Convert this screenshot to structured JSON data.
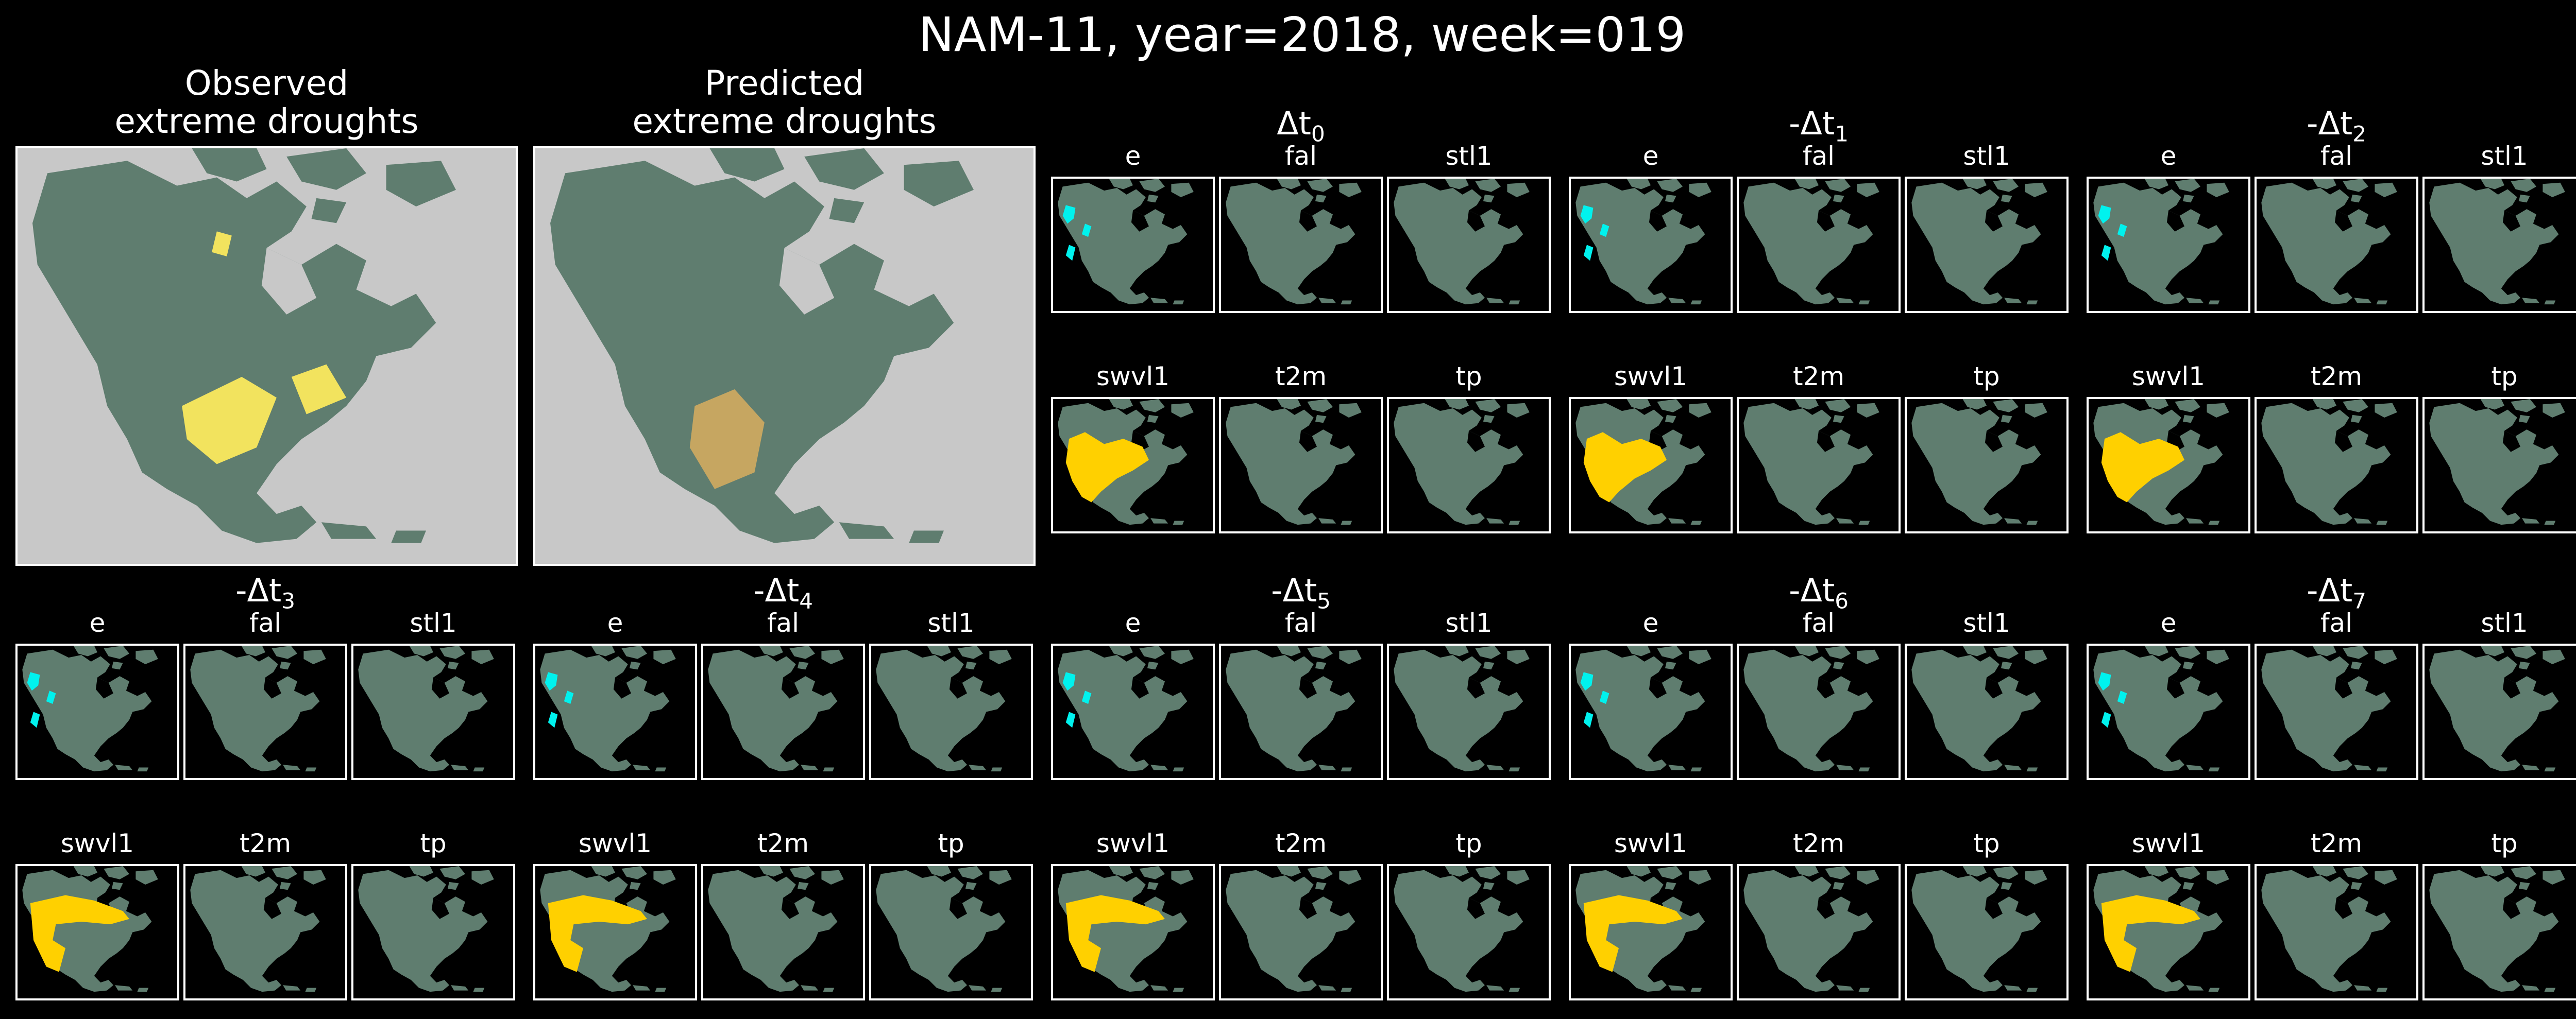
{
  "figure": {
    "title": "NAM-11,   year=2018, week=019",
    "observed_title": "Observed\nextreme droughts",
    "predicted_title": "Predicted\nextreme droughts"
  },
  "colors": {
    "background": "#000000",
    "land": "#5f7d6f",
    "ocean_big": "#c8c8c8",
    "ocean_small": "#000000",
    "drought_observed": "#f2e35e",
    "drought_predicted": "#e8b45c",
    "e_highlight": "#00f2ee",
    "swvl1_highlight": "#ffd000"
  },
  "variables_top": [
    "e",
    "fal",
    "stl1"
  ],
  "variables_bottom": [
    "swvl1",
    "t2m",
    "tp"
  ],
  "groups": [
    {
      "prefix": "Δt",
      "sub": "0"
    },
    {
      "prefix": "-Δt",
      "sub": "1"
    },
    {
      "prefix": "-Δt",
      "sub": "2"
    },
    {
      "prefix": "-Δt",
      "sub": "3"
    },
    {
      "prefix": "-Δt",
      "sub": "4"
    },
    {
      "prefix": "-Δt",
      "sub": "5"
    },
    {
      "prefix": "-Δt",
      "sub": "6"
    },
    {
      "prefix": "-Δt",
      "sub": "7"
    }
  ]
}
